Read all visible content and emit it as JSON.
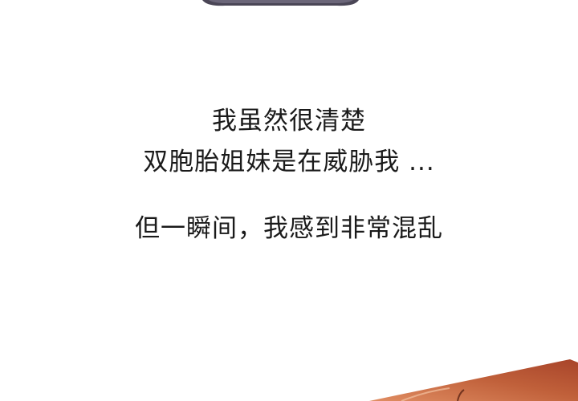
{
  "caption": {
    "line_1": "我虽然很清楚",
    "line_2": "双胞胎姐妹是在威胁我 ...",
    "line_3": "但一瞬间，我感到非常混乱"
  },
  "colors": {
    "text": "#1a1a1a",
    "background": "#ffffff",
    "top_art_fill": "#4a4656",
    "bottom_art_dark": "#a8442a",
    "bottom_art_light": "#e08d62"
  }
}
